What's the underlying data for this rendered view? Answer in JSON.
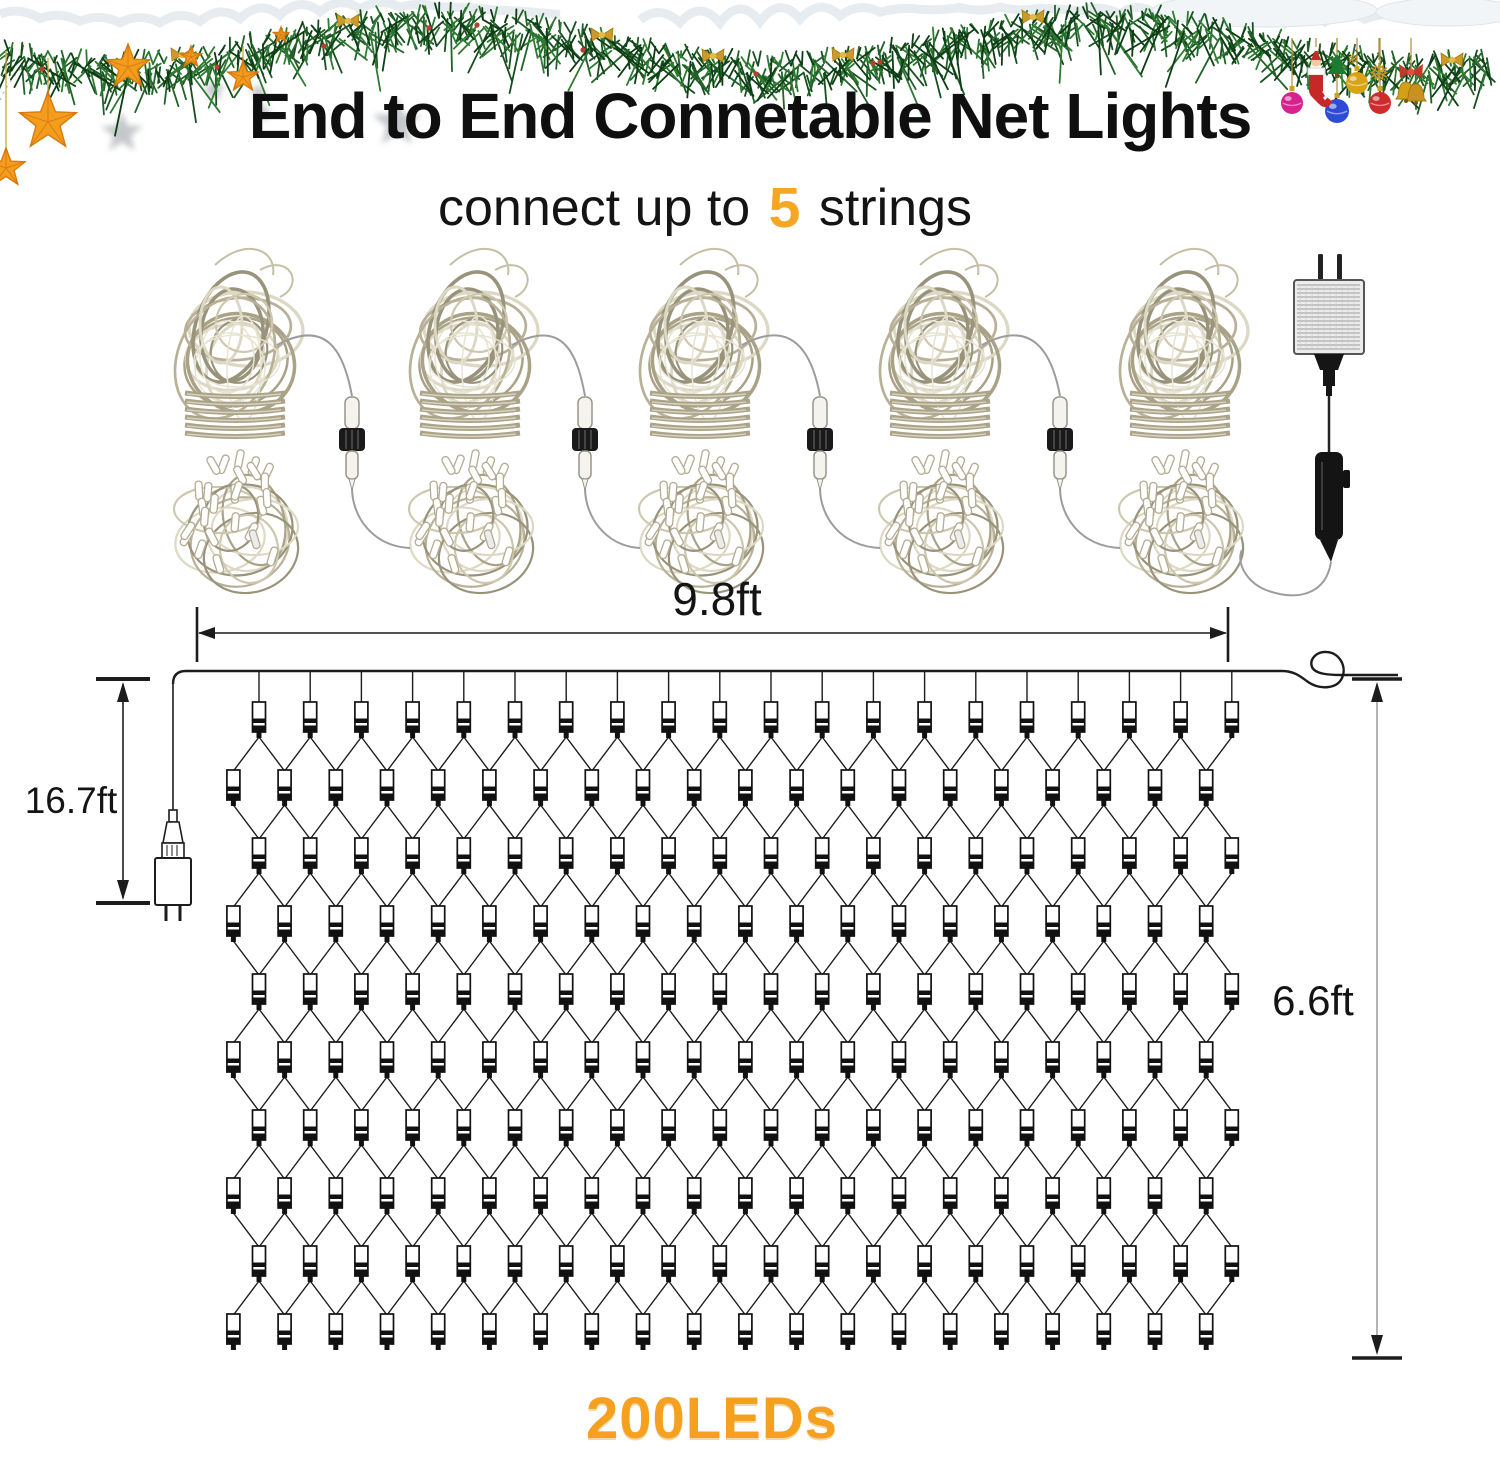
{
  "page": {
    "background": "#ffffff"
  },
  "header": {
    "title": "End to End Connetable Net Lights",
    "title_color": "#0f0f0f",
    "subtitle": {
      "prefix": "connect up to ",
      "highlight": "5",
      "suffix": " strings"
    },
    "highlight_color": "#F5A623"
  },
  "product_row": {
    "strings_shown": 5,
    "connectors_shown": 4,
    "has_power_plug": true
  },
  "diagram": {
    "width_label": "9.8ft",
    "lead_length_label": "16.7ft",
    "height_label": "6.6ft",
    "led_count_label": "200LEDs",
    "led_count_color": "#F5A01E",
    "line_color": "#1c1c1c",
    "net": {
      "rows": 10,
      "columns_per_row": 20,
      "total_leds": 200
    }
  },
  "decorations": {
    "garland": "pine-garland-with-snow",
    "star_color": "#F49D1C",
    "ornaments": [
      "pink-ball",
      "stocking",
      "mini-tree",
      "blue-ball",
      "gold-ball",
      "snowflake",
      "red-ball",
      "bells"
    ]
  }
}
